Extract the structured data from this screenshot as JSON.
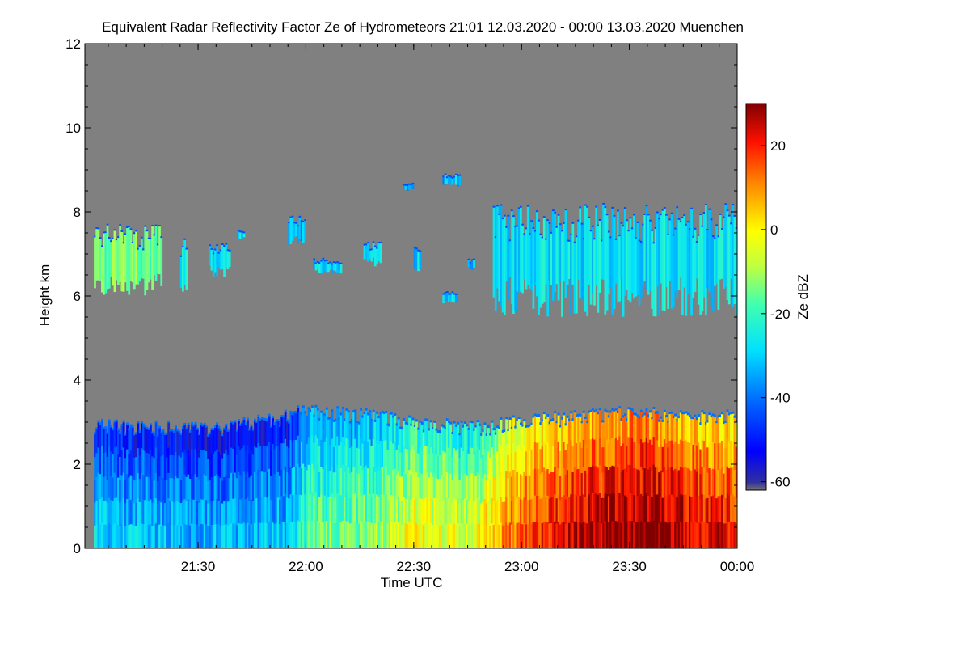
{
  "chart_data": {
    "type": "heatmap",
    "title": "Equivalent Radar Reflectivity Factor Ze of Hydrometeors   21:01 12.03.2020 - 00:00 13.03.2020 Muenchen",
    "xlabel": "Time UTC",
    "ylabel": "Height km",
    "x_range_minutes": [
      1261,
      1440
    ],
    "x_ticks": [
      {
        "minute": 1290,
        "label": "21:30"
      },
      {
        "minute": 1320,
        "label": "22:00"
      },
      {
        "minute": 1350,
        "label": "22:30"
      },
      {
        "minute": 1380,
        "label": "23:00"
      },
      {
        "minute": 1410,
        "label": "23:30"
      },
      {
        "minute": 1440,
        "label": "00:00"
      }
    ],
    "ylim": [
      0,
      12
    ],
    "y_ticks": [
      0,
      2,
      4,
      6,
      8,
      10,
      12
    ],
    "colorbar": {
      "label": "Ze dBZ",
      "range": [
        -62,
        30
      ],
      "ticks": [
        -60,
        -40,
        -20,
        0,
        20
      ]
    },
    "colors": {
      "background": "#808080",
      "frame": "#000000"
    },
    "features": [
      {
        "name": "low-precipitation-layer",
        "start": 1261,
        "end": 1440,
        "base_km": 0.0,
        "top_km": [
          [
            1261,
            2.9
          ],
          [
            1290,
            2.8
          ],
          [
            1310,
            3.0
          ],
          [
            1320,
            3.25
          ],
          [
            1340,
            3.1
          ],
          [
            1355,
            2.9
          ],
          [
            1370,
            2.85
          ],
          [
            1380,
            3.0
          ],
          [
            1395,
            3.1
          ],
          [
            1410,
            3.2
          ],
          [
            1425,
            3.1
          ],
          [
            1440,
            3.1
          ]
        ],
        "ze_dbz": [
          [
            1261,
            -38
          ],
          [
            1290,
            -42
          ],
          [
            1315,
            -40
          ],
          [
            1320,
            -25
          ],
          [
            1340,
            -20
          ],
          [
            1350,
            -10
          ],
          [
            1365,
            -15
          ],
          [
            1380,
            8
          ],
          [
            1400,
            18
          ],
          [
            1415,
            22
          ],
          [
            1430,
            15
          ],
          [
            1440,
            12
          ]
        ]
      },
      {
        "name": "high-cloud-band",
        "segments": [
          {
            "start": 1261,
            "end": 1280,
            "base_km": 6.0,
            "top_km": 7.7,
            "ze_dbz": -15
          },
          {
            "start": 1285,
            "end": 1287,
            "base_km": 6.1,
            "top_km": 7.4,
            "ze_dbz": -25
          },
          {
            "start": 1293,
            "end": 1299,
            "base_km": 6.4,
            "top_km": 7.3,
            "ze_dbz": -28
          },
          {
            "start": 1301,
            "end": 1303,
            "base_km": 7.3,
            "top_km": 7.6,
            "ze_dbz": -30
          },
          {
            "start": 1315,
            "end": 1320,
            "base_km": 7.2,
            "top_km": 7.9,
            "ze_dbz": -35
          },
          {
            "start": 1322,
            "end": 1330,
            "base_km": 6.5,
            "top_km": 6.9,
            "ze_dbz": -30
          },
          {
            "start": 1336,
            "end": 1341,
            "base_km": 6.7,
            "top_km": 7.3,
            "ze_dbz": -30
          },
          {
            "start": 1347,
            "end": 1350,
            "base_km": 8.5,
            "top_km": 8.7,
            "ze_dbz": -32
          },
          {
            "start": 1350,
            "end": 1352,
            "base_km": 6.5,
            "top_km": 7.2,
            "ze_dbz": -30
          },
          {
            "start": 1358,
            "end": 1362,
            "base_km": 5.8,
            "top_km": 6.1,
            "ze_dbz": -30
          },
          {
            "start": 1358,
            "end": 1363,
            "base_km": 8.6,
            "top_km": 8.9,
            "ze_dbz": -32
          },
          {
            "start": 1365,
            "end": 1367,
            "base_km": 6.6,
            "top_km": 6.9,
            "ze_dbz": -32
          },
          {
            "start": 1372,
            "end": 1440,
            "base_km": 5.5,
            "top_km": 8.2,
            "ze_dbz": -28
          }
        ]
      }
    ]
  }
}
